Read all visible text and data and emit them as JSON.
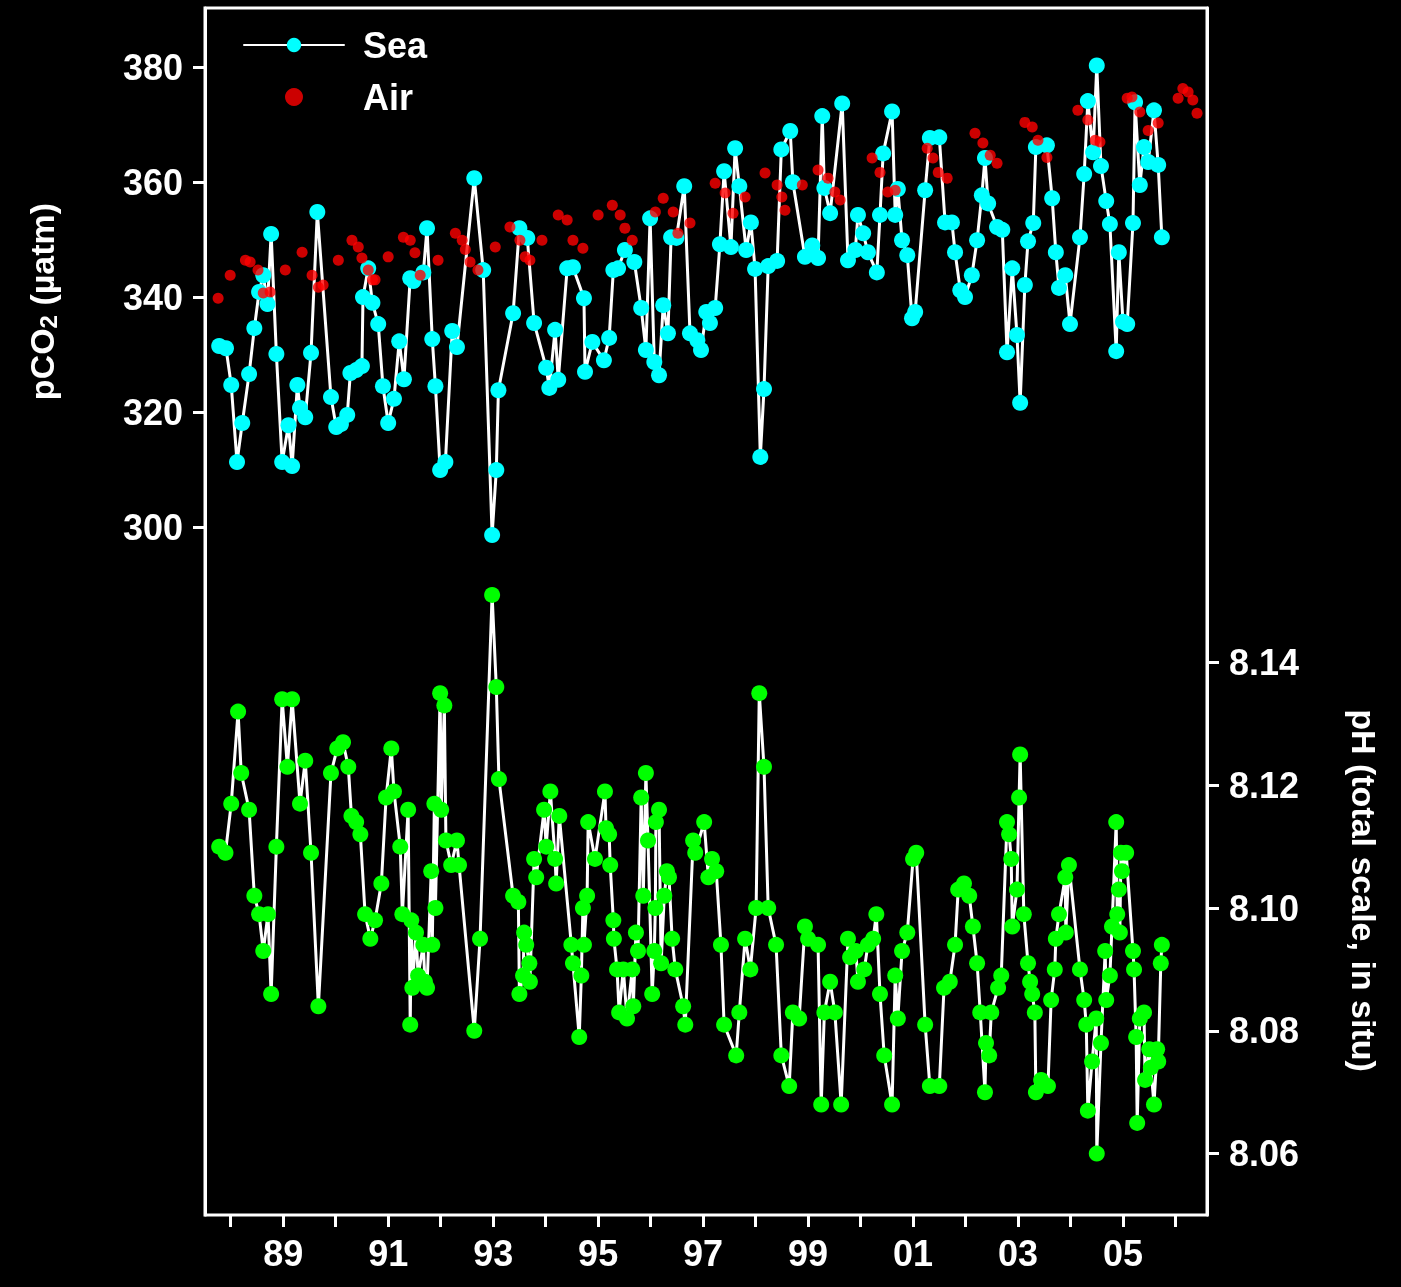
{
  "chart_data": {
    "type": "line",
    "ylabel": "pCO$_{2}$ (µatm)",
    "y2label": "pH (total scale, in situ)",
    "marker": "circle",
    "legend": "top left",
    "xlim": [
      1987.51,
      2006.6
    ],
    "xticks": [
      {
        "value": 1988,
        "label": null
      },
      {
        "value": 1989,
        "label": "89"
      },
      {
        "value": 1990,
        "label": null
      },
      {
        "value": 1991,
        "label": "91"
      },
      {
        "value": 1992,
        "label": null
      },
      {
        "value": 1993,
        "label": "93"
      },
      {
        "value": 1994,
        "label": null
      },
      {
        "value": 1995,
        "label": "95"
      },
      {
        "value": 1996,
        "label": null
      },
      {
        "value": 1997,
        "label": "97"
      },
      {
        "value": 1998,
        "label": null
      },
      {
        "value": 1999,
        "label": "99"
      },
      {
        "value": 2000,
        "label": null
      },
      {
        "value": 2001,
        "label": "01"
      },
      {
        "value": 2002,
        "label": null
      },
      {
        "value": 2003,
        "label": "03"
      },
      {
        "value": 2004,
        "label": null
      },
      {
        "value": 2005,
        "label": "05"
      },
      {
        "value": 2006,
        "label": null
      }
    ],
    "ylim": [
      180.3,
      390.3
    ],
    "yticks": [
      300,
      320,
      340,
      360,
      380
    ],
    "y2lim": [
      8.05,
      8.2466
    ],
    "y2ticks": [
      {
        "value": 8.06,
        "label": "8.06"
      },
      {
        "value": 8.08,
        "label": "8.08"
      },
      {
        "value": 8.1,
        "label": "8.10"
      },
      {
        "value": 8.12,
        "label": "8.12"
      },
      {
        "value": 8.14,
        "label": "8.14"
      }
    ],
    "series": [
      {
        "name": "Sea",
        "color": "#00ffff",
        "x": [
          1987.78,
          1987.91,
          1988.01,
          1988.12,
          1988.22,
          1988.35,
          1988.45,
          1988.54,
          1988.62,
          1988.7,
          1988.77,
          1988.87,
          1988.98,
          1989.1,
          1989.17,
          1989.27,
          1989.32,
          1989.42,
          1989.53,
          1989.65,
          1989.91,
          1990.01,
          1990.1,
          1990.22,
          1990.28,
          1990.39,
          1990.5,
          1990.52,
          1990.62,
          1990.7,
          1990.81,
          1990.9,
          1991.0,
          1991.11,
          1991.21,
          1991.3,
          1991.42,
          1991.48,
          1991.67,
          1991.74,
          1991.84,
          1991.9,
          1991.99,
          1992.09,
          1992.22,
          1992.31,
          1992.64,
          1992.81,
          1992.98,
          1993.06,
          1993.1,
          1993.38,
          1993.5,
          1993.65,
          1993.78,
          1994.01,
          1994.07,
          1994.18,
          1994.24,
          1994.41,
          1994.52,
          1994.73,
          1994.75,
          1994.89,
          1995.11,
          1995.21,
          1995.29,
          1995.38,
          1995.51,
          1995.69,
          1995.82,
          1995.91,
          1995.99,
          1996.07,
          1996.16,
          1996.24,
          1996.33,
          1996.39,
          1996.49,
          1996.64,
          1996.75,
          1996.89,
          1996.96,
          1997.06,
          1997.13,
          1997.23,
          1997.32,
          1997.4,
          1997.53,
          1997.61,
          1997.69,
          1997.82,
          1997.91,
          1997.99,
          1998.09,
          1998.16,
          1998.24,
          1998.41,
          1998.49,
          1998.66,
          1998.71,
          1998.94,
          1999.08,
          1999.19,
          1999.27,
          1999.31,
          1999.42,
          1999.65,
          1999.76,
          1999.9,
          1999.95,
          2000.05,
          2000.14,
          2000.31,
          2000.37,
          2000.43,
          2000.6,
          2000.66,
          2000.71,
          2000.79,
          2000.89,
          2000.98,
          2001.04,
          2001.23,
          2001.32,
          2001.5,
          2001.61,
          2001.74,
          2001.8,
          2001.9,
          2001.99,
          2002.12,
          2002.22,
          2002.31,
          2002.37,
          2002.43,
          2002.6,
          2002.7,
          2002.79,
          2002.89,
          2002.98,
          2003.04,
          2003.13,
          2003.19,
          2003.29,
          2003.34,
          2003.55,
          2003.65,
          2003.72,
          2003.78,
          2003.9,
          2003.99,
          2004.18,
          2004.26,
          2004.33,
          2004.43,
          2004.5,
          2004.58,
          2004.68,
          2004.75,
          2004.87,
          2004.92,
          2005.0,
          2005.08,
          2005.19,
          2005.23,
          2005.32,
          2005.4,
          2005.48,
          2005.59,
          2005.67,
          2005.74
        ],
        "values": [
          331.5,
          331.1,
          324.7,
          311.3,
          318.1,
          326.6,
          334.6,
          340.9,
          343.8,
          338.8,
          351.0,
          330.1,
          311.3,
          317.7,
          310.6,
          324.7,
          320.7,
          319.1,
          330.3,
          354.8,
          322.6,
          317.4,
          317.9,
          319.5,
          326.8,
          327.3,
          328.0,
          340.0,
          345.0,
          339.0,
          335.3,
          324.5,
          318.1,
          322.3,
          332.3,
          325.7,
          343.3,
          342.8,
          344.3,
          352.0,
          332.7,
          324.5,
          309.9,
          311.3,
          334.1,
          331.3,
          360.7,
          344.7,
          298.6,
          309.9,
          323.8,
          337.2,
          352.0,
          350.3,
          335.5,
          327.7,
          324.2,
          334.3,
          325.6,
          345.0,
          345.2,
          339.8,
          327.0,
          332.2,
          329.0,
          332.9,
          344.7,
          345.0,
          348.2,
          346.1,
          338.1,
          330.8,
          353.7,
          328.7,
          326.4,
          338.6,
          333.7,
          350.4,
          350.3,
          359.3,
          333.7,
          332.5,
          330.8,
          337.4,
          335.5,
          338.1,
          349.2,
          361.9,
          348.7,
          365.9,
          359.3,
          348.2,
          353.0,
          344.9,
          312.2,
          324.0,
          345.4,
          346.3,
          365.7,
          368.9,
          360.0,
          347.0,
          349.0,
          346.8,
          371.5,
          359.0,
          354.6,
          373.7,
          346.4,
          348.2,
          354.3,
          351.1,
          347.8,
          344.3,
          354.3,
          365.0,
          372.3,
          354.3,
          358.8,
          349.9,
          347.3,
          336.3,
          337.4,
          358.6,
          367.7,
          367.8,
          353.0,
          353.0,
          347.8,
          341.2,
          340.0,
          343.8,
          349.9,
          357.7,
          364.2,
          356.3,
          352.2,
          351.7,
          330.4,
          345.0,
          333.4,
          321.6,
          342.1,
          349.7,
          352.9,
          366.1,
          366.4,
          357.2,
          347.8,
          341.6,
          343.8,
          335.3,
          350.4,
          361.4,
          374.1,
          365.2,
          380.3,
          362.8,
          356.7,
          352.7,
          330.6,
          347.8,
          335.7,
          335.3,
          352.9,
          373.9,
          359.5,
          366.1,
          363.5,
          372.5,
          363.0,
          350.4
        ]
      },
      {
        "name": "Air",
        "type": "scatter",
        "color": "#ff0000",
        "x": [
          1987.76,
          1987.99,
          1988.28,
          1988.37,
          1988.52,
          1988.62,
          1988.75,
          1989.04,
          1989.36,
          1989.55,
          1989.67,
          1989.76,
          1990.05,
          1990.31,
          1990.43,
          1990.5,
          1990.62,
          1990.7,
          1990.75,
          1991.0,
          1991.29,
          1991.42,
          1991.51,
          1991.61,
          1991.95,
          1992.28,
          1992.41,
          1992.47,
          1992.56,
          1992.71,
          1993.04,
          1993.32,
          1993.51,
          1993.61,
          1993.7,
          1993.93,
          1994.24,
          1994.41,
          1994.52,
          1994.71,
          1995.0,
          1995.27,
          1995.42,
          1995.51,
          1995.65,
          1996.09,
          1996.24,
          1996.43,
          1996.52,
          1996.75,
          1997.23,
          1997.42,
          1997.57,
          1997.8,
          1998.18,
          1998.41,
          1998.5,
          1998.56,
          1998.89,
          1999.19,
          1999.38,
          1999.51,
          1999.61,
          2000.22,
          2000.37,
          2000.52,
          2000.66,
          2001.27,
          2001.38,
          2001.48,
          2001.65,
          2002.18,
          2002.33,
          2002.47,
          2002.6,
          2003.13,
          2003.27,
          2003.38,
          2003.55,
          2004.14,
          2004.33,
          2004.47,
          2004.56,
          2005.08,
          2005.17,
          2005.32,
          2005.48,
          2005.67,
          2006.05,
          2006.14,
          2006.24,
          2006.33,
          2006.41
        ],
        "values": [
          339.8,
          343.8,
          346.4,
          346.1,
          344.7,
          340.7,
          340.9,
          344.7,
          347.8,
          343.8,
          341.7,
          342.1,
          346.4,
          349.9,
          348.7,
          346.8,
          344.7,
          343.0,
          343.0,
          347.0,
          350.4,
          349.9,
          347.7,
          343.8,
          346.4,
          351.1,
          349.9,
          348.3,
          346.1,
          344.7,
          348.7,
          352.2,
          349.9,
          347.0,
          346.4,
          349.9,
          354.3,
          353.4,
          349.9,
          348.5,
          354.3,
          356.0,
          354.3,
          352.0,
          349.9,
          354.8,
          357.2,
          354.8,
          351.1,
          352.9,
          359.8,
          358.1,
          354.6,
          357.4,
          361.6,
          359.5,
          357.4,
          355.1,
          359.5,
          362.1,
          360.7,
          358.3,
          356.9,
          364.2,
          361.7,
          358.3,
          358.6,
          365.9,
          364.2,
          361.7,
          360.7,
          368.5,
          366.8,
          364.7,
          363.3,
          370.4,
          369.6,
          367.3,
          364.3,
          372.5,
          370.8,
          367.3,
          367.0,
          374.6,
          374.8,
          372.2,
          369.0,
          370.3,
          374.6,
          376.3,
          375.7,
          374.3,
          372.0
        ]
      },
      {
        "axis": "y2",
        "color": "#00ff00",
        "x": [
          1987.78,
          1987.9,
          1988.01,
          1988.14,
          1988.2,
          1988.35,
          1988.45,
          1988.54,
          1988.62,
          1988.71,
          1988.77,
          1988.87,
          1988.98,
          1989.08,
          1989.17,
          1989.32,
          1989.42,
          1989.53,
          1989.67,
          1989.91,
          1990.03,
          1990.14,
          1990.24,
          1990.3,
          1990.39,
          1990.47,
          1990.56,
          1990.66,
          1990.75,
          1990.87,
          1990.96,
          1991.06,
          1991.11,
          1991.23,
          1991.27,
          1991.38,
          1991.42,
          1991.44,
          1991.46,
          1991.53,
          1991.57,
          1991.67,
          1991.7,
          1991.74,
          1991.82,
          1991.84,
          1991.88,
          1991.9,
          1991.99,
          1992.01,
          1992.07,
          1992.1,
          1992.2,
          1992.31,
          1992.35,
          1992.64,
          1992.75,
          1992.98,
          1993.06,
          1993.11,
          1993.38,
          1993.48,
          1993.5,
          1993.57,
          1993.59,
          1993.63,
          1993.69,
          1993.7,
          1993.78,
          1993.82,
          1993.97,
          1994.01,
          1994.09,
          1994.18,
          1994.2,
          1994.26,
          1994.49,
          1994.52,
          1994.64,
          1994.68,
          1994.71,
          1994.73,
          1994.79,
          1994.81,
          1994.94,
          1995.13,
          1995.15,
          1995.21,
          1995.23,
          1995.29,
          1995.3,
          1995.36,
          1995.4,
          1995.48,
          1995.55,
          1995.65,
          1995.67,
          1995.72,
          1995.76,
          1995.82,
          1995.86,
          1995.91,
          1995.95,
          1996.03,
          1996.07,
          1996.09,
          1996.1,
          1996.16,
          1996.2,
          1996.26,
          1996.31,
          1996.35,
          1996.41,
          1996.47,
          1996.62,
          1996.66,
          1996.81,
          1996.85,
          1997.02,
          1997.1,
          1997.17,
          1997.25,
          1997.34,
          1997.4,
          1997.63,
          1997.69,
          1997.8,
          1997.9,
          1998.01,
          1998.07,
          1998.16,
          1998.24,
          1998.39,
          1998.49,
          1998.64,
          1998.71,
          1998.83,
          1998.94,
          1999.0,
          1999.19,
          1999.25,
          1999.31,
          1999.42,
          1999.51,
          1999.63,
          1999.76,
          1999.8,
          1999.91,
          1999.95,
          2000.07,
          2000.14,
          2000.24,
          2000.3,
          2000.37,
          2000.45,
          2000.6,
          2000.66,
          2000.71,
          2000.79,
          2000.89,
          2001.0,
          2001.06,
          2001.23,
          2001.32,
          2001.5,
          2001.59,
          2001.7,
          2001.8,
          2001.86,
          2001.97,
          2002.07,
          2002.14,
          2002.22,
          2002.28,
          2002.37,
          2002.39,
          2002.45,
          2002.49,
          2002.62,
          2002.68,
          2002.79,
          2002.83,
          2002.87,
          2002.89,
          2002.98,
          2003.02,
          2003.04,
          2003.11,
          2003.19,
          2003.23,
          2003.27,
          2003.32,
          2003.34,
          2003.44,
          2003.57,
          2003.63,
          2003.7,
          2003.72,
          2003.78,
          2003.9,
          2003.91,
          2003.97,
          2004.18,
          2004.26,
          2004.3,
          2004.33,
          2004.41,
          2004.49,
          2004.5,
          2004.58,
          2004.66,
          2004.68,
          2004.75,
          2004.79,
          2004.87,
          2004.89,
          2004.92,
          2004.94,
          2004.96,
          2004.98,
          2005.06,
          2005.19,
          2005.21,
          2005.25,
          2005.27,
          2005.32,
          2005.4,
          2005.42,
          2005.5,
          2005.53,
          2005.59,
          2005.65,
          2005.67,
          2005.72,
          2005.74
        ],
        "values": [
          8.11,
          8.109,
          8.117,
          8.132,
          8.122,
          8.116,
          8.102,
          8.099,
          8.093,
          8.099,
          8.086,
          8.11,
          8.134,
          8.123,
          8.134,
          8.117,
          8.124,
          8.109,
          8.084,
          8.122,
          8.126,
          8.127,
          8.123,
          8.115,
          8.114,
          8.112,
          8.099,
          8.095,
          8.098,
          8.104,
          8.118,
          8.126,
          8.119,
          8.11,
          8.099,
          8.116,
          8.081,
          8.098,
          8.087,
          8.096,
          8.089,
          8.094,
          8.088,
          8.087,
          8.106,
          8.094,
          8.117,
          8.1,
          8.135,
          8.116,
          8.133,
          8.111,
          8.107,
          8.111,
          8.107,
          8.08,
          8.095,
          8.151,
          8.136,
          8.121,
          8.102,
          8.101,
          8.086,
          8.089,
          8.096,
          8.094,
          8.091,
          8.088,
          8.108,
          8.105,
          8.116,
          8.11,
          8.119,
          8.108,
          8.104,
          8.115,
          8.094,
          8.091,
          8.079,
          8.089,
          8.1,
          8.094,
          8.102,
          8.114,
          8.108,
          8.119,
          8.113,
          8.112,
          8.107,
          8.098,
          8.095,
          8.09,
          8.083,
          8.09,
          8.082,
          8.09,
          8.084,
          8.096,
          8.093,
          8.118,
          8.102,
          8.122,
          8.111,
          8.086,
          8.093,
          8.1,
          8.114,
          8.116,
          8.091,
          8.102,
          8.106,
          8.105,
          8.095,
          8.09,
          8.084,
          8.081,
          8.111,
          8.109,
          8.114,
          8.105,
          8.108,
          8.106,
          8.094,
          8.081,
          8.076,
          8.083,
          8.095,
          8.09,
          8.1,
          8.135,
          8.123,
          8.1,
          8.094,
          8.076,
          8.071,
          8.083,
          8.082,
          8.097,
          8.095,
          8.094,
          8.068,
          8.083,
          8.088,
          8.083,
          8.068,
          8.095,
          8.092,
          8.093,
          8.088,
          8.09,
          8.094,
          8.095,
          8.099,
          8.086,
          8.076,
          8.068,
          8.089,
          8.082,
          8.093,
          8.096,
          8.108,
          8.109,
          8.081,
          8.071,
          8.071,
          8.087,
          8.088,
          8.094,
          8.103,
          8.104,
          8.102,
          8.097,
          8.091,
          8.083,
          8.07,
          8.078,
          8.076,
          8.083,
          8.087,
          8.089,
          8.114,
          8.112,
          8.108,
          8.097,
          8.103,
          8.118,
          8.125,
          8.099,
          8.091,
          8.088,
          8.086,
          8.083,
          8.07,
          8.072,
          8.071,
          8.085,
          8.09,
          8.095,
          8.099,
          8.105,
          8.096,
          8.107,
          8.09,
          8.085,
          8.081,
          8.067,
          8.075,
          8.082,
          8.06,
          8.078,
          8.093,
          8.085,
          8.089,
          8.097,
          8.114,
          8.099,
          8.103,
          8.096,
          8.109,
          8.106,
          8.109,
          8.093,
          8.09,
          8.079,
          8.065,
          8.082,
          8.083,
          8.072,
          8.077,
          8.074,
          8.068,
          8.077,
          8.075,
          8.091,
          8.094
        ]
      }
    ]
  }
}
